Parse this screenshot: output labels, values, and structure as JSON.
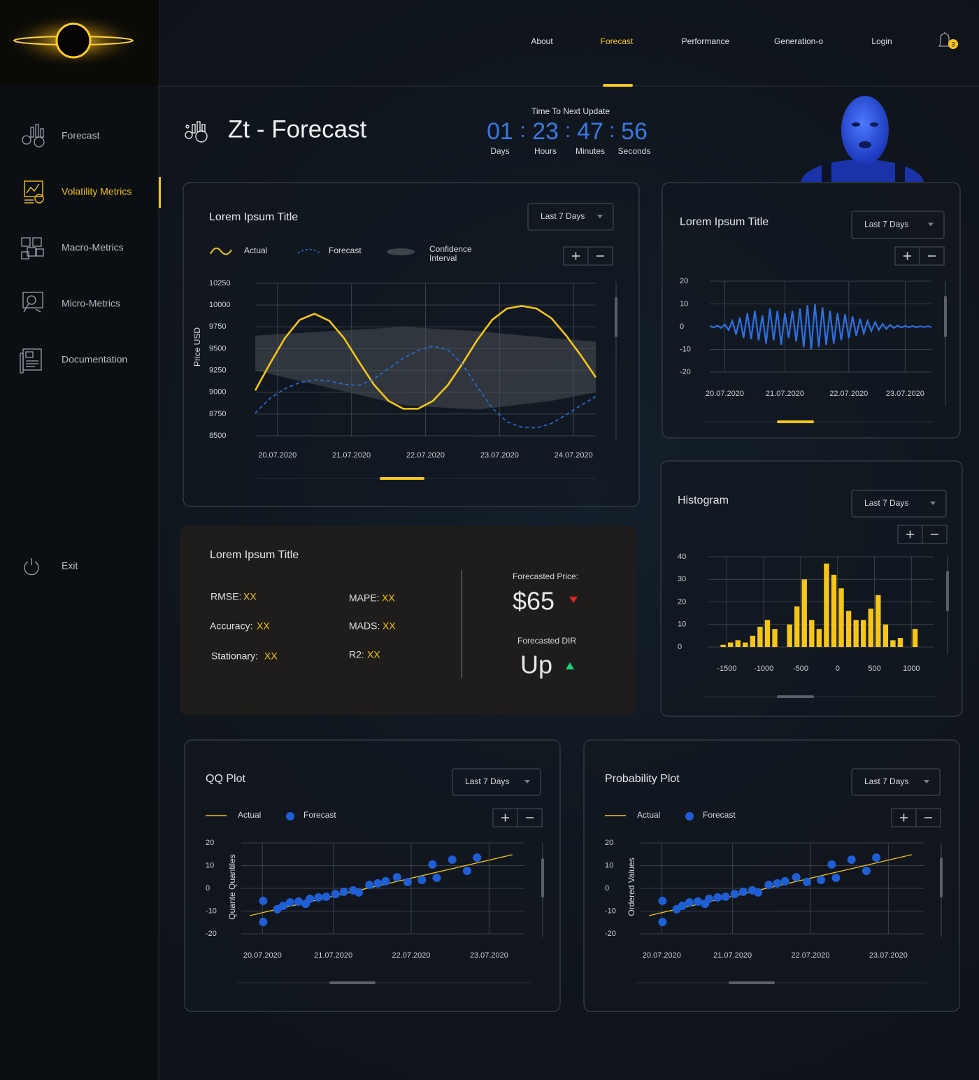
{
  "nav": {
    "items": [
      "About",
      "Forecast",
      "Performance",
      "Generation-o",
      "Login"
    ],
    "active": 1,
    "notifications": 3
  },
  "sidebar": {
    "items": [
      "Forecast",
      "Volatility Metrics",
      "Macro-Metrics",
      "Micro-Metrics",
      "Documentation"
    ],
    "active": 1,
    "exit": "Exit"
  },
  "header": {
    "title": "Zt - Forecast",
    "countdown": {
      "label": "Time To Next Update",
      "separator": ":",
      "units": [
        {
          "value": "01",
          "label": "Days"
        },
        {
          "value": "23",
          "label": "Hours"
        },
        {
          "value": "47",
          "label": "Minutes"
        },
        {
          "value": "56",
          "label": "Seconds"
        }
      ]
    }
  },
  "stats": {
    "title": "Lorem Ipsum Title",
    "metrics": [
      {
        "label": "RMSE:",
        "value": "XX"
      },
      {
        "label": "MAPE:",
        "value": "XX"
      },
      {
        "label": "Accuracy:",
        "value": "XX"
      },
      {
        "label": "MADS:",
        "value": "XX"
      },
      {
        "label": "Stationary:",
        "value": "XX"
      },
      {
        "label": "R2:",
        "value": "XX"
      }
    ],
    "price": {
      "label": "Forecasted Price:",
      "value": "$65"
    },
    "direction": {
      "label": "Forecasted DIR",
      "value": "Up"
    }
  },
  "chart_data": [
    {
      "type": "line",
      "title": "Lorem Ipsum Title",
      "range": "Last 7 Days",
      "y_label": "Price USD",
      "x": [
        0,
        0.2,
        0.4,
        0.6,
        0.8,
        1.0,
        1.2,
        1.4,
        1.6,
        1.8,
        2.0,
        2.2,
        2.4,
        2.6,
        2.8,
        3.0,
        3.2,
        3.4,
        3.6,
        3.8,
        4.0,
        4.2,
        4.4,
        4.6
      ],
      "xlim": [
        0,
        4.6
      ],
      "xticks": [
        {
          "value": 0.3,
          "label": "20.07.2020"
        },
        {
          "value": 1.3,
          "label": "21.07.2020"
        },
        {
          "value": 2.3,
          "label": "22.07.2020"
        },
        {
          "value": 3.3,
          "label": "23.07.2020"
        },
        {
          "value": 4.3,
          "label": "24.07.2020"
        }
      ],
      "ylim": [
        8500,
        10250
      ],
      "yticks": [
        8500,
        8750,
        9000,
        9250,
        9500,
        9750,
        10000,
        10250
      ],
      "grid": true,
      "series": [
        {
          "name": "Actual",
          "color": "#f5c518",
          "style": "solid",
          "values": [
            9020,
            9330,
            9620,
            9830,
            9900,
            9820,
            9620,
            9350,
            9090,
            8900,
            8810,
            8810,
            8900,
            9080,
            9330,
            9600,
            9830,
            9960,
            9990,
            9960,
            9850,
            9650,
            9420,
            9170
          ]
        },
        {
          "name": "Forecast",
          "color": "#2f6fe0",
          "style": "dashed",
          "values": [
            8760,
            8930,
            9040,
            9110,
            9140,
            9130,
            9090,
            9080,
            9150,
            9270,
            9390,
            9480,
            9530,
            9490,
            9320,
            9060,
            8820,
            8660,
            8600,
            8590,
            8640,
            8740,
            8850,
            8950
          ]
        }
      ],
      "band": {
        "name": "Confidence Interval",
        "color": "#4a5058",
        "x": [
          0,
          1,
          2,
          3,
          4,
          4.6
        ],
        "upper": [
          9650,
          9700,
          9750,
          9700,
          9620,
          9580
        ],
        "lower": [
          9250,
          9050,
          8850,
          8800,
          8900,
          9000
        ]
      }
    },
    {
      "type": "wave",
      "title": "Lorem Ipsum Title",
      "range": "Last 7 Days",
      "color": "#2f6fe0",
      "categories": [
        null,
        null,
        null,
        null,
        null,
        null,
        null,
        null,
        null,
        null,
        null,
        null,
        null,
        null,
        null,
        null,
        null,
        null,
        null,
        null,
        null,
        null,
        null,
        null,
        null,
        null,
        null,
        null,
        null,
        null,
        null,
        null,
        null,
        null,
        null,
        null,
        null,
        null,
        null,
        null,
        null,
        null,
        null,
        null,
        null,
        null,
        null,
        null,
        null,
        null,
        null,
        null,
        null,
        null,
        null,
        null,
        null,
        null,
        null,
        null
      ],
      "values": [
        0.3,
        -0.4,
        0.5,
        -0.6,
        1,
        -1.5,
        2.5,
        -3.5,
        4,
        -5,
        6,
        -5.5,
        7,
        -6,
        5,
        -7.5,
        8,
        -6,
        7,
        -8,
        6,
        -5,
        7,
        -6.5,
        8,
        -9,
        9.5,
        -10,
        10,
        -9,
        8.5,
        -8,
        7,
        -7.5,
        6,
        -6,
        5.5,
        -5,
        4.5,
        -4,
        3.5,
        -3,
        2.5,
        -2,
        2,
        -1.5,
        1.2,
        -1,
        0.8,
        -0.6,
        0.5,
        -0.4,
        0.4,
        -0.3,
        0.3,
        -0.3,
        0.2,
        -0.2,
        0.2,
        -0.2
      ],
      "xlim": [
        0,
        59
      ],
      "xticks": [
        {
          "value": 4,
          "label": "20.07.2020"
        },
        {
          "value": 20,
          "label": "21.07.2020"
        },
        {
          "value": 37,
          "label": "22.07.2020"
        },
        {
          "value": 52,
          "label": "23.07.2020"
        }
      ],
      "ylim": [
        -20,
        20
      ],
      "yticks": [
        -20,
        -10,
        0,
        10,
        20
      ],
      "grid": true
    },
    {
      "type": "histogram",
      "title": "Histogram",
      "range": "Last 7 Days",
      "color": "#f5c518",
      "bins": [
        -1600,
        -1500,
        -1400,
        -1300,
        -1200,
        -1100,
        -1000,
        -900,
        -800,
        -700,
        -600,
        -500,
        -400,
        -300,
        -200,
        -100,
        0,
        100,
        200,
        300,
        400,
        500,
        600,
        700,
        800,
        900,
        1000,
        1100
      ],
      "counts": [
        1,
        2,
        3,
        2,
        5,
        9,
        12,
        8,
        0,
        10,
        18,
        30,
        12,
        8,
        37,
        32,
        26,
        16,
        12,
        12,
        17,
        23,
        10,
        3,
        4,
        0,
        8
      ],
      "xlim": [
        -1750,
        1300
      ],
      "xticks": [
        -1500,
        -1000,
        -500,
        0,
        500,
        1000
      ],
      "ylim": [
        0,
        40
      ],
      "yticks": [
        0,
        10,
        20,
        30,
        40
      ],
      "grid": true
    },
    {
      "type": "scatter",
      "title": "QQ Plot",
      "range": "Last 7 Days",
      "y_label": "Quante Quantiles",
      "xlim": [
        0,
        4
      ],
      "xticks": [
        {
          "value": 0.3,
          "label": "20.07.2020"
        },
        {
          "value": 1.3,
          "label": "21.07.2020"
        },
        {
          "value": 2.4,
          "label": "22.07.2020"
        },
        {
          "value": 3.5,
          "label": "23.07.2020"
        }
      ],
      "ylim": [
        -20,
        20
      ],
      "yticks": [
        -20,
        -10,
        0,
        10,
        20
      ],
      "grid": true,
      "series": [
        {
          "name": "Actual",
          "color": "#f5c518",
          "kind": "line",
          "x": [
            0.12,
            3.83
          ],
          "values": [
            -12,
            14.8
          ]
        },
        {
          "name": "Forecast",
          "color": "#1f5fd6",
          "kind": "points",
          "x": [
            0.31,
            0.31,
            0.51,
            0.59,
            0.69,
            0.81,
            0.91,
            0.97,
            1.09,
            1.2,
            1.33,
            1.45,
            1.58,
            1.66,
            1.81,
            1.93,
            2.04,
            2.2,
            2.35,
            2.55,
            2.7,
            2.76,
            2.98,
            3.19,
            3.33
          ],
          "values": [
            -5.5,
            -14.8,
            -9.2,
            -7.7,
            -6.2,
            -5.8,
            -6.8,
            -4.6,
            -4,
            -3.7,
            -2.5,
            -1.5,
            -0.9,
            -1.8,
            1.5,
            2.2,
            3.1,
            4.9,
            2.8,
            3.7,
            10.5,
            4.6,
            12.6,
            7.7,
            13.5
          ]
        }
      ]
    },
    {
      "type": "scatter",
      "title": "Probability Plot",
      "range": "Last 7 Days",
      "y_label": "Ordered Values",
      "xlim": [
        0,
        4
      ],
      "xticks": [
        {
          "value": 0.3,
          "label": "20.07.2020"
        },
        {
          "value": 1.3,
          "label": "21.07.2020"
        },
        {
          "value": 2.4,
          "label": "22.07.2020"
        },
        {
          "value": 3.5,
          "label": "23.07.2020"
        }
      ],
      "ylim": [
        -20,
        20
      ],
      "yticks": [
        -20,
        -10,
        0,
        10,
        20
      ],
      "grid": true,
      "series": [
        {
          "name": "Actual",
          "color": "#f5c518",
          "kind": "line",
          "x": [
            0.12,
            3.83
          ],
          "values": [
            -12,
            14.8
          ]
        },
        {
          "name": "Forecast",
          "color": "#1f5fd6",
          "kind": "points",
          "x": [
            0.31,
            0.31,
            0.51,
            0.59,
            0.69,
            0.81,
            0.91,
            0.97,
            1.09,
            1.2,
            1.33,
            1.45,
            1.58,
            1.66,
            1.81,
            1.93,
            2.04,
            2.2,
            2.35,
            2.55,
            2.7,
            2.76,
            2.98,
            3.19,
            3.33
          ],
          "values": [
            -5.5,
            -14.8,
            -9.2,
            -7.7,
            -6.2,
            -5.8,
            -6.8,
            -4.6,
            -4,
            -3.7,
            -2.5,
            -1.5,
            -0.9,
            -1.8,
            1.5,
            2.2,
            3.1,
            4.9,
            2.8,
            3.7,
            10.5,
            4.6,
            12.6,
            7.7,
            13.5
          ]
        }
      ]
    }
  ]
}
